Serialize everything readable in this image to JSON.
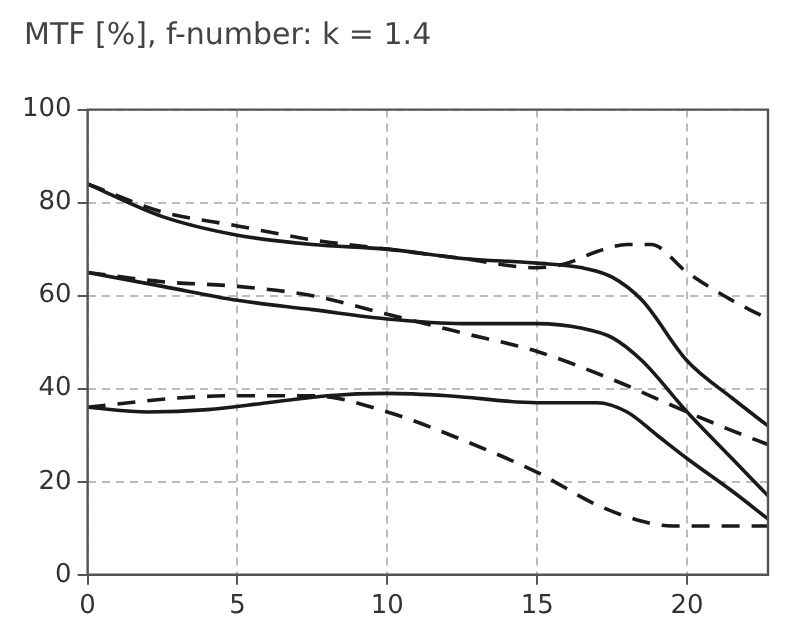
{
  "chart_data": {
    "type": "line",
    "title": "MTF [%], f-number: k = 1.4",
    "xlim": [
      0,
      22.7
    ],
    "xticks": [
      0,
      5,
      10,
      15,
      20
    ],
    "ylim": [
      0,
      100
    ],
    "yticks": [
      0,
      20,
      40,
      60,
      80,
      100
    ],
    "grid": true,
    "legend": false,
    "marker": "none",
    "series": [
      {
        "color": "#1a1a1a",
        "line_style": "solid",
        "x": [
          0,
          2.5,
          5,
          7.5,
          10,
          12.5,
          15,
          16.5,
          17.5,
          18.5,
          20,
          21.5,
          22.7
        ],
        "values": [
          84,
          77,
          73,
          71,
          70,
          68,
          67,
          66,
          64,
          59,
          46,
          38,
          32
        ]
      },
      {
        "color": "#1a1a1a",
        "line_style": "dashed",
        "x": [
          0,
          2.5,
          5,
          7.5,
          10,
          12.5,
          15,
          16,
          17,
          18,
          18.8,
          20,
          21.5,
          22.7
        ],
        "values": [
          84,
          78,
          75,
          72,
          70,
          68,
          66,
          67,
          69.5,
          71,
          71,
          65,
          59,
          55
        ]
      },
      {
        "color": "#1a1a1a",
        "line_style": "solid",
        "x": [
          0,
          2.5,
          5,
          7.5,
          10,
          12.5,
          15,
          16.5,
          17.5,
          18.5,
          20,
          21.5,
          22.7
        ],
        "values": [
          65,
          62,
          59,
          57,
          55,
          54,
          54,
          53,
          51,
          46,
          35,
          25,
          17
        ]
      },
      {
        "color": "#1a1a1a",
        "line_style": "dashed",
        "x": [
          0,
          2.5,
          5,
          7.5,
          10,
          12.5,
          15,
          17.5,
          20,
          21.5,
          22.7
        ],
        "values": [
          65,
          63,
          62,
          60,
          56,
          52,
          48,
          42,
          35,
          31,
          28
        ]
      },
      {
        "color": "#1a1a1a",
        "line_style": "solid",
        "x": [
          0,
          2,
          4,
          6,
          8,
          10,
          12,
          15,
          17,
          18,
          19,
          20,
          21.5,
          22.7
        ],
        "values": [
          36,
          35,
          35.5,
          37,
          38.5,
          39,
          38.5,
          37,
          37,
          35,
          30,
          25,
          18,
          12
        ]
      },
      {
        "color": "#1a1a1a",
        "line_style": "dashed",
        "x": [
          0,
          3,
          5,
          7.5,
          10,
          12.5,
          15,
          17,
          18.5,
          19.5,
          21,
          22.7
        ],
        "values": [
          36,
          38,
          38.5,
          38.5,
          35,
          29,
          22,
          15,
          11.5,
          10.5,
          10.5,
          10.5
        ]
      }
    ]
  }
}
